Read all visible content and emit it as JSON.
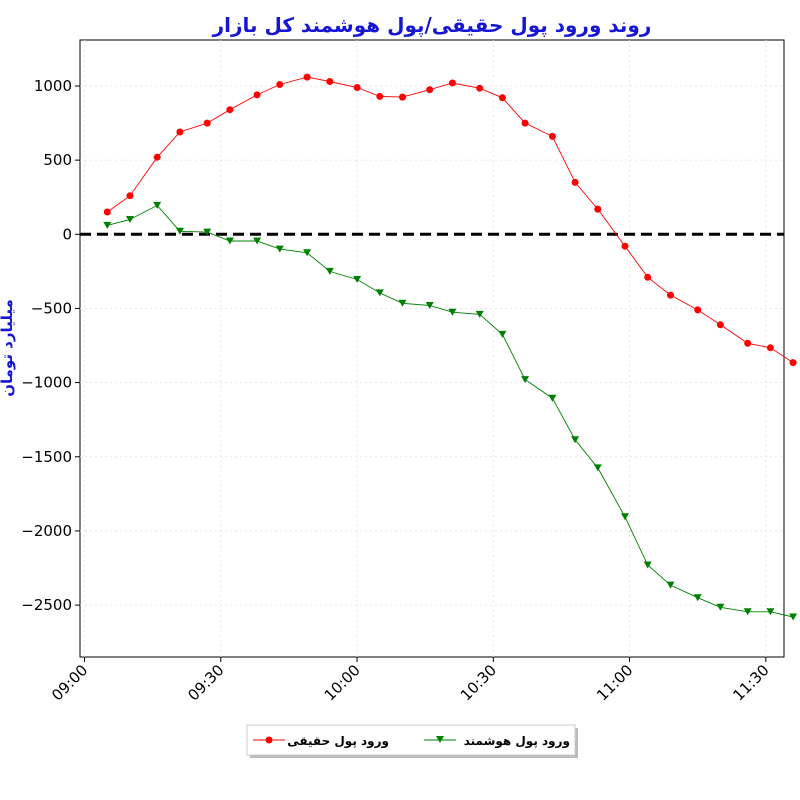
{
  "chart_data": {
    "type": "line",
    "title": "روند ورود پول حقیقی/پول هوشمند کل بازار",
    "xlabel": "",
    "ylabel": "میلیارد تومان",
    "x_ticks": [
      "09:00",
      "09:30",
      "10:00",
      "10:30",
      "11:00",
      "11:30"
    ],
    "y_ticks": [
      1000,
      500,
      0,
      -500,
      -1000,
      -1500,
      -2000,
      -2500
    ],
    "y_tick_labels": [
      "1000",
      "500",
      "0",
      "−500",
      "−1000",
      "−1500",
      "−2000",
      "−2500"
    ],
    "xlim": [
      "08:59",
      "11:34"
    ],
    "ylim": [
      -2850,
      1310
    ],
    "grid": true,
    "zero_line": {
      "y": 0,
      "color": "#000000",
      "style": "dashed"
    },
    "legend": {
      "placement": "bottom-center"
    },
    "x": [
      "09:05",
      "09:10",
      "09:16",
      "09:21",
      "09:27",
      "09:32",
      "09:38",
      "09:43",
      "09:49",
      "09:54",
      "10:00",
      "10:05",
      "10:10",
      "10:16",
      "10:21",
      "10:27",
      "10:32",
      "10:37",
      "10:43",
      "10:48",
      "10:53",
      "10:59",
      "11:04",
      "11:09",
      "11:15",
      "11:20",
      "11:26",
      "11:31",
      "11:36"
    ],
    "series": [
      {
        "name": "ورود پول حقیقی",
        "color": "#ff0000",
        "marker": "circle",
        "values": [
          150,
          260,
          520,
          690,
          750,
          840,
          940,
          1010,
          1060,
          1030,
          990,
          930,
          925,
          975,
          1020,
          985,
          920,
          750,
          660,
          350,
          170,
          -80,
          -290,
          -410,
          -510,
          -610,
          -735,
          -765,
          -865
        ]
      },
      {
        "name": "ورود پول هوشمند",
        "color": "#008000",
        "marker": "triangle-down",
        "values": [
          60,
          100,
          195,
          20,
          15,
          -45,
          -45,
          -100,
          -125,
          -250,
          -305,
          -395,
          -465,
          -480,
          -525,
          -540,
          -675,
          -980,
          -1105,
          -1385,
          -1575,
          -1905,
          -2230,
          -2365,
          -2450,
          -2515,
          -2545,
          -2545,
          -2580
        ]
      }
    ]
  }
}
